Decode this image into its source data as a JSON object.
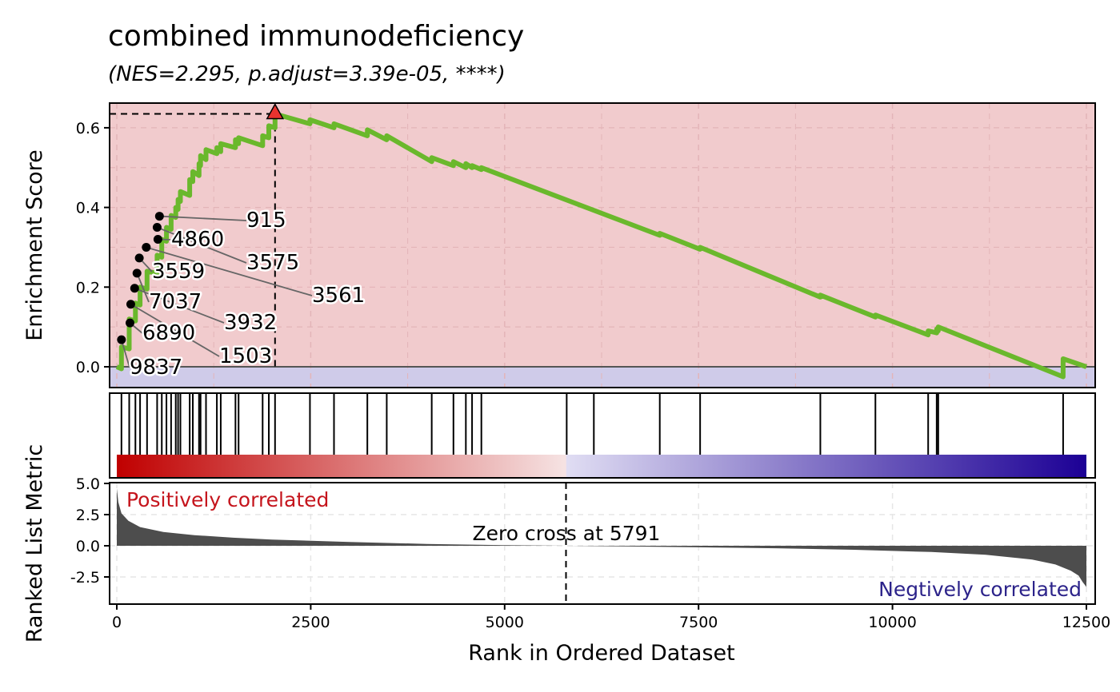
{
  "title": "combined immunodeficiency",
  "subtitle": "(NES=2.295, p.adjust=3.39e-05, ****)",
  "colors": {
    "positive_bg": "#f1cbcd",
    "negative_bg": "#cfcbe9",
    "es_line": "#6ab82c",
    "peak_marker": "#e8332f",
    "rank_bar": "#4d4d4d",
    "heat_start": "#c00000",
    "heat_mid_pos": "#f6e3e3",
    "heat_mid_neg": "#e0ddf3",
    "heat_end": "#1c0095",
    "positive_label": "#c5141c",
    "negative_label": "#2c238a"
  },
  "chart_data": [
    {
      "type": "line",
      "panel": "running-enrichment-score",
      "ylabel": "Enrichment Score",
      "xlim": [
        0,
        12500
      ],
      "ylim": [
        -0.05,
        0.66
      ],
      "y_ticks": [
        0.0,
        0.2,
        0.4,
        0.6
      ],
      "y_tick_labels": [
        "0.0",
        "0.2",
        "0.4",
        "0.6"
      ],
      "grid": true,
      "peak": {
        "x": 2040,
        "y": 0.635
      },
      "series": [
        {
          "x": [
            0,
            60,
            60,
            160,
            160,
            240,
            240,
            300,
            300,
            390,
            390,
            520,
            520,
            580,
            580,
            640,
            640,
            700,
            700,
            760,
            760,
            790,
            790,
            820,
            820,
            940,
            940,
            980,
            980,
            1060,
            1060,
            1080,
            1080,
            1150,
            1150,
            1290,
            1290,
            1340,
            1340,
            1530,
            1530,
            1570,
            1570,
            1880,
            1880,
            1960,
            1960,
            2040,
            2040,
            2490,
            2490,
            2800,
            2800,
            3230,
            3230,
            3480,
            3480,
            4060,
            4060,
            4340,
            4340,
            4500,
            4500,
            4580,
            4580,
            4700,
            4700,
            7000,
            7000,
            7520,
            7520,
            9070,
            9070,
            9780,
            9780,
            10460,
            10460,
            10570,
            10570,
            10590,
            10590,
            12200,
            12200,
            12500
          ],
          "y": [
            0,
            -0.005,
            0.05,
            0.045,
            0.12,
            0.115,
            0.16,
            0.155,
            0.2,
            0.195,
            0.24,
            0.235,
            0.28,
            0.275,
            0.32,
            0.315,
            0.35,
            0.345,
            0.38,
            0.375,
            0.4,
            0.395,
            0.42,
            0.415,
            0.44,
            0.43,
            0.47,
            0.465,
            0.49,
            0.48,
            0.51,
            0.505,
            0.53,
            0.52,
            0.545,
            0.535,
            0.55,
            0.54,
            0.56,
            0.55,
            0.57,
            0.56,
            0.575,
            0.555,
            0.58,
            0.575,
            0.605,
            0.6,
            0.635,
            0.61,
            0.62,
            0.6,
            0.61,
            0.58,
            0.595,
            0.57,
            0.58,
            0.515,
            0.525,
            0.505,
            0.515,
            0.5,
            0.51,
            0.5,
            0.505,
            0.495,
            0.5,
            0.33,
            0.335,
            0.295,
            0.3,
            0.175,
            0.18,
            0.125,
            0.13,
            0.08,
            0.09,
            0.085,
            0.095,
            0.09,
            0.1,
            -0.025,
            0.02,
            0.0
          ]
        }
      ]
    },
    {
      "type": "bar",
      "panel": "gene-hits",
      "x": [
        60,
        160,
        240,
        300,
        390,
        520,
        580,
        640,
        700,
        760,
        790,
        820,
        940,
        980,
        1060,
        1080,
        1150,
        1290,
        1340,
        1530,
        1570,
        1880,
        1960,
        2040,
        2490,
        2800,
        3230,
        3480,
        4060,
        4340,
        4500,
        4580,
        4700,
        5800,
        6150,
        7000,
        7520,
        9070,
        9780,
        10460,
        10570,
        10590,
        12200
      ]
    },
    {
      "type": "area",
      "panel": "ranked-list-metric",
      "ylabel": "Ranked List Metric",
      "xlabel": "Rank in Ordered Dataset",
      "xlim": [
        0,
        12500
      ],
      "ylim": [
        -4.5,
        5.0
      ],
      "x_ticks": [
        0,
        2500,
        5000,
        7500,
        10000,
        12500
      ],
      "x_tick_labels": [
        "0",
        "2500",
        "5000",
        "7500",
        "10000",
        "12500"
      ],
      "y_ticks": [
        -2.5,
        0.0,
        2.5,
        5.0
      ],
      "y_tick_labels": [
        "-2.5",
        "0.0",
        "2.5",
        "5.0"
      ],
      "zero_cross": 5791,
      "series": [
        {
          "x": [
            0,
            20,
            60,
            150,
            300,
            600,
            1000,
            1500,
            2000,
            3000,
            4000,
            5000,
            5791,
            6500,
            7500,
            8500,
            9500,
            10500,
            11200,
            11800,
            12100,
            12300,
            12400,
            12450,
            12500
          ],
          "y": [
            4.6,
            3.5,
            2.6,
            2.0,
            1.5,
            1.1,
            0.85,
            0.65,
            0.5,
            0.3,
            0.15,
            0.05,
            0.0,
            -0.05,
            -0.12,
            -0.2,
            -0.32,
            -0.5,
            -0.72,
            -1.1,
            -1.5,
            -2.0,
            -2.4,
            -2.9,
            -3.3
          ]
        }
      ]
    }
  ],
  "gene_labels": [
    {
      "text": "915",
      "x": 550,
      "y": 0.378
    },
    {
      "text": "4860",
      "x": 530,
      "y": 0.32
    },
    {
      "text": "3575",
      "x": 520,
      "y": 0.35
    },
    {
      "text": "3561",
      "x": 380,
      "y": 0.3
    },
    {
      "text": "3559",
      "x": 290,
      "y": 0.273
    },
    {
      "text": "7037",
      "x": 260,
      "y": 0.235
    },
    {
      "text": "3932",
      "x": 230,
      "y": 0.197
    },
    {
      "text": "1503",
      "x": 180,
      "y": 0.157
    },
    {
      "text": "6890",
      "x": 170,
      "y": 0.11
    },
    {
      "text": "9837",
      "x": 60,
      "y": 0.068
    }
  ],
  "annotations": {
    "positive": "Positively correlated",
    "negative": "Negtively correlated",
    "zero_cross": "Zero cross at 5791"
  }
}
